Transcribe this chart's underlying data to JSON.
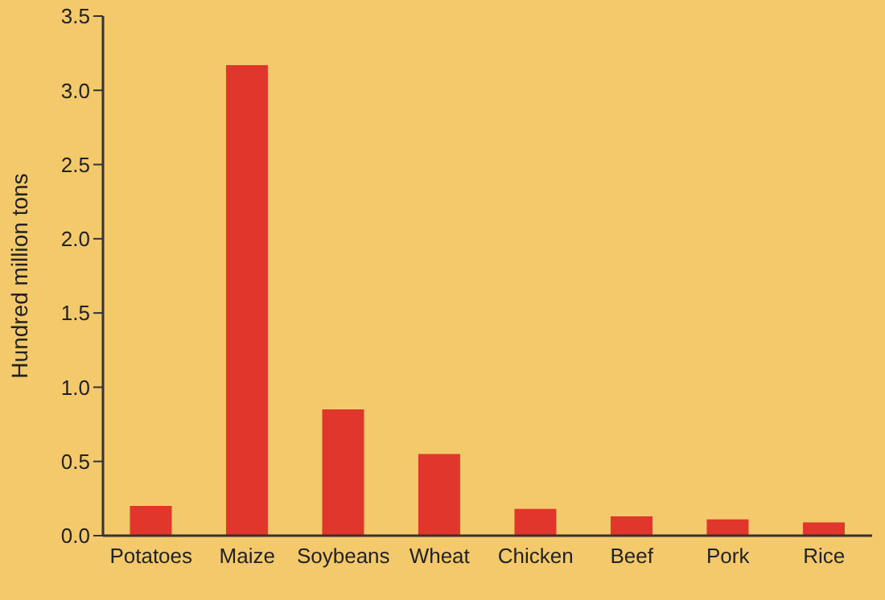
{
  "chart_data": {
    "type": "bar",
    "ylabel": "Hundred million tons",
    "categories": [
      "Potatoes",
      "Maize",
      "Soybeans",
      "Wheat",
      "Chicken",
      "Beef",
      "Pork",
      "Rice"
    ],
    "values": [
      0.2,
      3.17,
      0.85,
      0.55,
      0.18,
      0.13,
      0.11,
      0.09
    ],
    "color": "#e0362c",
    "ylim": [
      0,
      3.5
    ],
    "yticks": [
      {
        "value": 0,
        "label": "0.0"
      },
      {
        "value": 0.5,
        "label": "0.5"
      },
      {
        "value": 1,
        "label": "1.0"
      },
      {
        "value": 1.5,
        "label": "1.5"
      },
      {
        "value": 2,
        "label": "2.0"
      },
      {
        "value": 2.5,
        "label": "2.5"
      },
      {
        "value": 3,
        "label": "3.0"
      },
      {
        "value": 3.5,
        "label": "3.5"
      }
    ],
    "grid": false
  }
}
